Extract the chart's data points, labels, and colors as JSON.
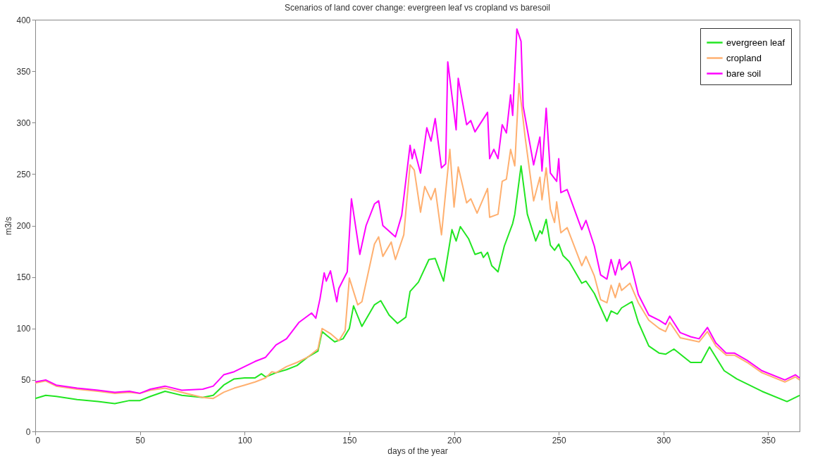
{
  "chart_data": {
    "type": "line",
    "title": "Scenarios of land cover change: evergreen leaf vs cropland vs baresoil",
    "xlabel": "days of the year",
    "ylabel": "m3/s",
    "xlim": [
      0,
      365
    ],
    "ylim": [
      0,
      400
    ],
    "xticks": [
      0,
      50,
      100,
      150,
      200,
      250,
      300,
      350
    ],
    "yticks": [
      0,
      50,
      100,
      150,
      200,
      250,
      300,
      350,
      400
    ],
    "grid": false,
    "legend": "top right",
    "marker": "none",
    "line_style": "solid",
    "series": [
      {
        "name": "evergreen leaf",
        "color": "#22e622",
        "x": [
          0,
          5,
          10,
          20,
          30,
          38,
          45,
          50,
          55,
          62,
          70,
          80,
          85,
          90,
          95,
          100,
          105,
          108,
          110,
          115,
          120,
          125,
          130,
          135,
          137,
          140,
          143,
          147,
          150,
          152,
          156,
          162,
          165,
          169,
          173,
          177,
          179,
          183,
          188,
          191,
          195,
          199,
          201,
          203,
          207,
          210,
          213,
          214,
          216,
          218,
          221,
          224,
          228,
          229,
          232,
          235,
          239,
          241,
          242,
          244,
          246,
          248,
          250,
          252,
          255,
          261,
          263,
          267,
          273,
          275,
          278,
          280,
          285,
          288,
          293,
          298,
          301,
          305,
          313,
          318,
          322,
          329,
          335,
          347,
          359,
          365
        ],
        "values": [
          32,
          35,
          34,
          31,
          29,
          27,
          30,
          30,
          34,
          39,
          35,
          33,
          35,
          45,
          51,
          52,
          52,
          56,
          53,
          57,
          60,
          64,
          72,
          78,
          97,
          92,
          87,
          90,
          100,
          122,
          102,
          123,
          127,
          113,
          105,
          111,
          136,
          145,
          167,
          168,
          146,
          196,
          185,
          199,
          187,
          172,
          174,
          169,
          174,
          161,
          155,
          180,
          202,
          211,
          258,
          211,
          185,
          195,
          192,
          206,
          181,
          176,
          182,
          171,
          165,
          144,
          146,
          134,
          107,
          117,
          114,
          120,
          126,
          106,
          83,
          76,
          75,
          80,
          67,
          67,
          82,
          59,
          51,
          39,
          29,
          35
        ]
      },
      {
        "name": "cropland",
        "color": "#ffb070",
        "x": [
          0,
          5,
          10,
          20,
          30,
          38,
          45,
          50,
          55,
          62,
          70,
          80,
          85,
          90,
          95,
          100,
          105,
          110,
          113,
          115,
          120,
          125,
          130,
          135,
          137,
          141,
          145,
          148,
          150,
          154,
          156,
          162,
          164,
          166,
          170,
          172,
          176,
          179,
          181,
          184,
          186,
          189,
          191,
          194,
          198,
          200,
          202,
          206,
          208,
          211,
          216,
          217,
          221,
          223,
          225,
          227,
          229,
          231,
          234,
          238,
          241,
          242,
          244,
          246,
          248,
          249,
          251,
          254,
          261,
          263,
          267,
          270,
          273,
          275,
          277,
          279,
          280,
          284,
          288,
          293,
          298,
          301,
          303,
          308,
          317,
          321,
          325,
          330,
          334,
          340,
          347,
          358,
          363,
          365
        ],
        "values": [
          47,
          49,
          44,
          41,
          39,
          37,
          38,
          37,
          40,
          42,
          38,
          33,
          32,
          38,
          42,
          45,
          48,
          52,
          58,
          57,
          63,
          67,
          72,
          80,
          100,
          95,
          88,
          98,
          149,
          123,
          126,
          182,
          189,
          170,
          184,
          167,
          191,
          259,
          254,
          213,
          238,
          225,
          236,
          191,
          274,
          218,
          257,
          222,
          226,
          212,
          236,
          208,
          211,
          243,
          245,
          274,
          258,
          338,
          285,
          224,
          247,
          225,
          256,
          216,
          203,
          223,
          193,
          198,
          161,
          170,
          151,
          128,
          125,
          142,
          130,
          144,
          137,
          144,
          125,
          108,
          100,
          97,
          106,
          91,
          87,
          97,
          83,
          74,
          74,
          67,
          57,
          48,
          53,
          50
        ]
      },
      {
        "name": "bare soil",
        "color": "#ff00ff",
        "x": [
          0,
          5,
          10,
          20,
          30,
          38,
          45,
          50,
          55,
          62,
          70,
          80,
          85,
          90,
          95,
          100,
          105,
          110,
          115,
          120,
          126,
          132,
          134,
          136,
          138,
          139,
          141,
          144,
          145,
          149,
          151,
          155,
          158,
          162,
          164,
          166,
          172,
          175,
          179,
          180,
          181,
          184,
          187,
          189,
          191,
          194,
          196,
          197,
          201,
          202,
          206,
          208,
          210,
          216,
          217,
          219,
          221,
          223,
          225,
          227,
          228,
          230,
          232,
          233,
          238,
          241,
          242,
          244,
          246,
          249,
          250,
          251,
          254,
          261,
          263,
          267,
          270,
          273,
          275,
          277,
          279,
          280,
          284,
          285,
          288,
          293,
          298,
          301,
          303,
          308,
          313,
          317,
          321,
          325,
          330,
          334,
          340,
          347,
          358,
          363,
          365
        ],
        "values": [
          48,
          50,
          45,
          42,
          40,
          38,
          39,
          37,
          41,
          44,
          40,
          41,
          44,
          55,
          58,
          63,
          68,
          72,
          84,
          90,
          106,
          115,
          110,
          129,
          154,
          146,
          156,
          126,
          139,
          155,
          226,
          172,
          200,
          221,
          224,
          200,
          189,
          210,
          278,
          265,
          274,
          251,
          295,
          282,
          304,
          256,
          260,
          359,
          293,
          343,
          298,
          302,
          291,
          310,
          265,
          274,
          265,
          298,
          290,
          327,
          307,
          391,
          379,
          316,
          259,
          286,
          253,
          314,
          251,
          243,
          265,
          232,
          235,
          196,
          205,
          180,
          152,
          148,
          167,
          152,
          167,
          157,
          165,
          158,
          133,
          113,
          108,
          104,
          112,
          96,
          92,
          90,
          101,
          86,
          76,
          76,
          69,
          59,
          50,
          55,
          52
        ]
      }
    ]
  }
}
